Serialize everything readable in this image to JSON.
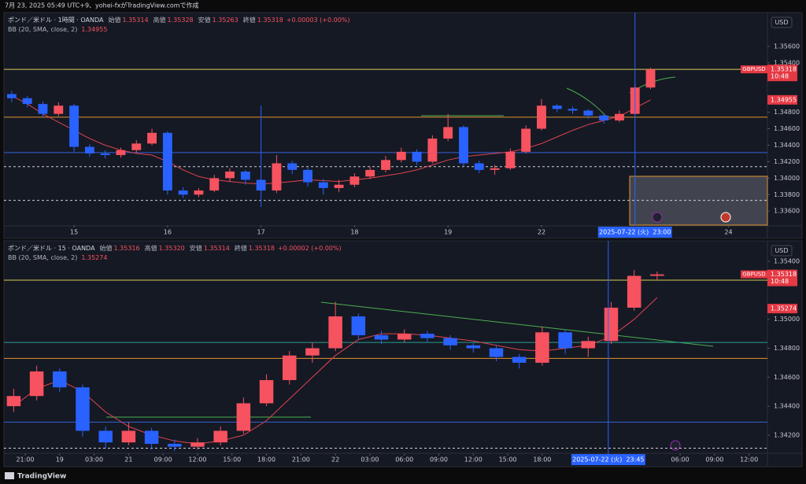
{
  "header": {
    "caption": "7月 23, 2025 05:49 UTC+9、yohei-fxがTradingView.comで作成",
    "brand": "TradingView"
  },
  "chart_data": [
    {
      "type": "candlestick",
      "symbol": "ポンド／米ドル · 1時間 · OANDA",
      "ohlc": [
        {
          "label": "始値",
          "value": "1.35314"
        },
        {
          "label": "高値",
          "value": "1.35328"
        },
        {
          "label": "安値",
          "value": "1.35263"
        },
        {
          "label": "終値",
          "value": "1.35318"
        }
      ],
      "change": "+0.00003 (+0.00%)",
      "indicator": "BB (20, SMA, close, 2)",
      "indicator_value": "1.34955",
      "currency": "USD",
      "ticker": "GBPUSD",
      "last_price": "1.35318",
      "countdown": "10:48",
      "up_color": "#f7525f",
      "down_color": "#2962ff",
      "xlim": [
        -0.5,
        48.5
      ],
      "ylim": [
        1.3344,
        1.3599
      ],
      "xticks": [
        {
          "value": 4,
          "label": "15"
        },
        {
          "value": 10,
          "label": "16"
        },
        {
          "value": 16,
          "label": "17"
        },
        {
          "value": 22,
          "label": "18"
        },
        {
          "value": 28,
          "label": "19"
        },
        {
          "value": 34,
          "label": "22"
        },
        {
          "value": 46,
          "label": "24"
        }
      ],
      "yticks": [
        {
          "value": 1.336,
          "label": "1.33600"
        },
        {
          "value": 1.338,
          "label": "1.33800"
        },
        {
          "value": 1.34,
          "label": "1.34000"
        },
        {
          "value": 1.342,
          "label": "1.34200"
        },
        {
          "value": 1.344,
          "label": "1.34400"
        },
        {
          "value": 1.346,
          "label": "1.34600"
        },
        {
          "value": 1.348,
          "label": "1.34800"
        },
        {
          "value": 1.354,
          "label": "1.35400"
        },
        {
          "value": 1.356,
          "label": "1.35600"
        }
      ],
      "crosshair": {
        "x": 40,
        "label": "2025-07-22 (火)  23:00"
      },
      "levels": [
        {
          "value": 1.3532,
          "color": "#d9cc55",
          "dash": false
        },
        {
          "value": 1.3474,
          "color": "#e0952e",
          "dash": false
        },
        {
          "value": 1.3431,
          "color": "#3561d6",
          "dash": false
        },
        {
          "value": 1.3414,
          "color": "#d0d0d0",
          "dash": true
        },
        {
          "value": 1.3373,
          "color": "#d0d0d0",
          "dash": true
        }
      ],
      "candles": {
        "x": [
          0,
          1,
          2,
          3,
          4,
          5,
          6,
          7,
          8,
          9,
          10,
          11,
          12,
          13,
          14,
          15,
          16,
          17,
          18,
          19,
          20,
          21,
          22,
          23,
          24,
          25,
          26,
          27,
          28,
          29,
          30,
          31,
          32,
          33,
          34,
          35,
          36,
          37,
          38,
          39,
          40,
          41
        ],
        "open": [
          1.3502,
          1.3497,
          1.349,
          1.3478,
          1.3488,
          1.3438,
          1.343,
          1.3428,
          1.3434,
          1.3442,
          1.3455,
          1.3385,
          1.338,
          1.3385,
          1.34,
          1.3408,
          1.3398,
          1.3385,
          1.3418,
          1.341,
          1.3395,
          1.3388,
          1.3392,
          1.3402,
          1.341,
          1.3422,
          1.3432,
          1.342,
          1.3448,
          1.3462,
          1.3418,
          1.341,
          1.3412,
          1.3432,
          1.346,
          1.3488,
          1.3484,
          1.3482,
          1.3476,
          1.347,
          1.3478,
          1.351
        ],
        "high": [
          1.3506,
          1.35,
          1.3493,
          1.3492,
          1.349,
          1.3441,
          1.3434,
          1.3437,
          1.3446,
          1.346,
          1.3457,
          1.3389,
          1.3388,
          1.3404,
          1.3412,
          1.341,
          1.3488,
          1.3428,
          1.3421,
          1.3413,
          1.3399,
          1.3398,
          1.3406,
          1.3414,
          1.3427,
          1.3437,
          1.3435,
          1.3452,
          1.3478,
          1.3464,
          1.3421,
          1.3416,
          1.3436,
          1.3464,
          1.3496,
          1.349,
          1.3487,
          1.3484,
          1.3478,
          1.3482,
          1.3514,
          1.3534
        ],
        "low": [
          1.3492,
          1.3486,
          1.3474,
          1.3475,
          1.3432,
          1.3426,
          1.3424,
          1.3425,
          1.3431,
          1.344,
          1.338,
          1.3376,
          1.3377,
          1.3383,
          1.3396,
          1.3392,
          1.3365,
          1.3382,
          1.3405,
          1.339,
          1.338,
          1.3383,
          1.3389,
          1.3399,
          1.3407,
          1.3419,
          1.3416,
          1.3418,
          1.3445,
          1.3414,
          1.3406,
          1.3404,
          1.341,
          1.343,
          1.3458,
          1.348,
          1.3478,
          1.3472,
          1.3466,
          1.3468,
          1.3476,
          1.3508
        ],
        "close": [
          1.3497,
          1.349,
          1.3478,
          1.3488,
          1.3438,
          1.343,
          1.3428,
          1.3434,
          1.3442,
          1.3455,
          1.3385,
          1.338,
          1.3385,
          1.34,
          1.3408,
          1.3398,
          1.3385,
          1.3418,
          1.341,
          1.3395,
          1.3388,
          1.3392,
          1.3402,
          1.341,
          1.3422,
          1.3432,
          1.342,
          1.3448,
          1.3462,
          1.3418,
          1.341,
          1.3412,
          1.3432,
          1.346,
          1.3488,
          1.3484,
          1.3482,
          1.3476,
          1.347,
          1.3478,
          1.351,
          1.3532
        ]
      },
      "bb_basis": {
        "color": "#e0434f",
        "values": [
          1.35,
          1.349,
          1.3478,
          1.3468,
          1.3458,
          1.3448,
          1.344,
          1.3434,
          1.343,
          1.3428,
          1.342,
          1.341,
          1.3402,
          1.3398,
          1.3396,
          1.3394,
          1.3393,
          1.3394,
          1.3396,
          1.3398,
          1.3397,
          1.3396,
          1.3398,
          1.34,
          1.3403,
          1.3406,
          1.341,
          1.3416,
          1.3422,
          1.3426,
          1.3428,
          1.343,
          1.3432,
          1.3436,
          1.3442,
          1.345,
          1.3458,
          1.3465,
          1.347,
          1.3475,
          1.3485,
          1.3495
        ]
      }
    },
    {
      "type": "candlestick",
      "symbol": "ポンド／米ドル · 15 · OANDA",
      "ohlc": [
        {
          "label": "始値",
          "value": "1.35316"
        },
        {
          "label": "高値",
          "value": "1.35320"
        },
        {
          "label": "安値",
          "value": "1.35314"
        },
        {
          "label": "終値",
          "value": "1.35318"
        }
      ],
      "change": "+0.00002 (+0.00%)",
      "indicator": "BB (20, SMA, close, 2)",
      "indicator_value": "1.35274",
      "currency": "USD",
      "ticker": "GBPUSD",
      "last_price": "1.35318",
      "countdown": "10:48",
      "up_color": "#f7525f",
      "down_color": "#2962ff",
      "xlim": [
        -1.85,
        64.6
      ],
      "ylim": [
        1.3408,
        1.3552
      ],
      "xticks": [
        {
          "value": 0,
          "label": "21:00"
        },
        {
          "value": 3,
          "label": "19"
        },
        {
          "value": 6,
          "label": "03:00"
        },
        {
          "value": 9,
          "label": "21"
        },
        {
          "value": 12,
          "label": "09:00"
        },
        {
          "value": 15,
          "label": "12:00"
        },
        {
          "value": 18,
          "label": "15:00"
        },
        {
          "value": 21,
          "label": "18:00"
        },
        {
          "value": 24,
          "label": "21:00"
        },
        {
          "value": 27,
          "label": "22"
        },
        {
          "value": 30,
          "label": "03:00"
        },
        {
          "value": 33,
          "label": "06:00"
        },
        {
          "value": 36,
          "label": "09:00"
        },
        {
          "value": 39,
          "label": "12:00"
        },
        {
          "value": 42,
          "label": "15:00"
        },
        {
          "value": 45,
          "label": "18:00"
        },
        {
          "value": 57,
          "label": "06:00"
        },
        {
          "value": 60,
          "label": "09:00"
        },
        {
          "value": 63,
          "label": "12:00"
        }
      ],
      "yticks": [
        {
          "value": 1.342,
          "label": "1.34200"
        },
        {
          "value": 1.344,
          "label": "1.34400"
        },
        {
          "value": 1.346,
          "label": "1.34600"
        },
        {
          "value": 1.348,
          "label": "1.34800"
        },
        {
          "value": 1.35,
          "label": "1.35000"
        },
        {
          "value": 1.354,
          "label": "1.35400"
        }
      ],
      "crosshair": {
        "x": 50.75,
        "label": "2025-07-22 (火)  23:45"
      },
      "levels": [
        {
          "value": 1.3527,
          "color": "#d9cc55",
          "dash": false
        },
        {
          "value": 1.3484,
          "color": "#2a9d8f",
          "dash": false
        },
        {
          "value": 1.3473,
          "color": "#e0952e",
          "dash": false
        },
        {
          "value": 1.3429,
          "color": "#3561d6",
          "dash": false
        },
        {
          "value": 1.3411,
          "color": "#d0d0d0",
          "dash": true
        }
      ],
      "candles": {
        "x": [
          -1,
          1,
          3,
          5,
          7,
          9,
          11,
          13,
          15,
          17,
          19,
          21,
          23,
          25,
          27,
          29,
          31,
          33,
          35,
          37,
          39,
          41,
          43,
          45,
          47,
          49,
          51,
          53,
          55
        ],
        "open": [
          1.344,
          1.3447,
          1.3464,
          1.3453,
          1.3423,
          1.3415,
          1.3423,
          1.3414,
          1.3412,
          1.3415,
          1.3423,
          1.3442,
          1.3458,
          1.3475,
          1.348,
          1.3502,
          1.3489,
          1.3486,
          1.349,
          1.3487,
          1.3482,
          1.348,
          1.3474,
          1.347,
          1.3491,
          1.348,
          1.3485,
          1.3508,
          1.353
        ],
        "high": [
          1.3452,
          1.3468,
          1.3466,
          1.3455,
          1.3426,
          1.3429,
          1.3425,
          1.3417,
          1.3418,
          1.3426,
          1.3446,
          1.3462,
          1.3478,
          1.3484,
          1.3512,
          1.3504,
          1.3492,
          1.3493,
          1.3492,
          1.3489,
          1.3484,
          1.3482,
          1.3476,
          1.3495,
          1.3493,
          1.3488,
          1.3512,
          1.3534,
          1.3533
        ],
        "low": [
          1.3436,
          1.3444,
          1.345,
          1.3419,
          1.3411,
          1.3413,
          1.341,
          1.3409,
          1.341,
          1.3413,
          1.3421,
          1.344,
          1.3455,
          1.347,
          1.3478,
          1.3486,
          1.3483,
          1.3484,
          1.3484,
          1.3479,
          1.3477,
          1.3471,
          1.3466,
          1.3468,
          1.3476,
          1.3474,
          1.3483,
          1.3506,
          1.3527
        ],
        "close": [
          1.3447,
          1.3464,
          1.3453,
          1.3423,
          1.3415,
          1.3423,
          1.3414,
          1.3412,
          1.3415,
          1.3423,
          1.3442,
          1.3458,
          1.3475,
          1.348,
          1.3502,
          1.3489,
          1.3486,
          1.349,
          1.3487,
          1.3482,
          1.348,
          1.3474,
          1.347,
          1.3491,
          1.348,
          1.3485,
          1.3508,
          1.353,
          1.3531
        ]
      },
      "bb_basis": {
        "color": "#e0434f",
        "values": [
          1.344,
          1.3452,
          1.3458,
          1.345,
          1.3436,
          1.3426,
          1.342,
          1.3416,
          1.3414,
          1.3416,
          1.342,
          1.343,
          1.3445,
          1.346,
          1.3475,
          1.3486,
          1.349,
          1.349,
          1.3489,
          1.3487,
          1.3485,
          1.3482,
          1.3479,
          1.3478,
          1.348,
          1.3482,
          1.3488,
          1.35,
          1.3515
        ]
      }
    }
  ]
}
